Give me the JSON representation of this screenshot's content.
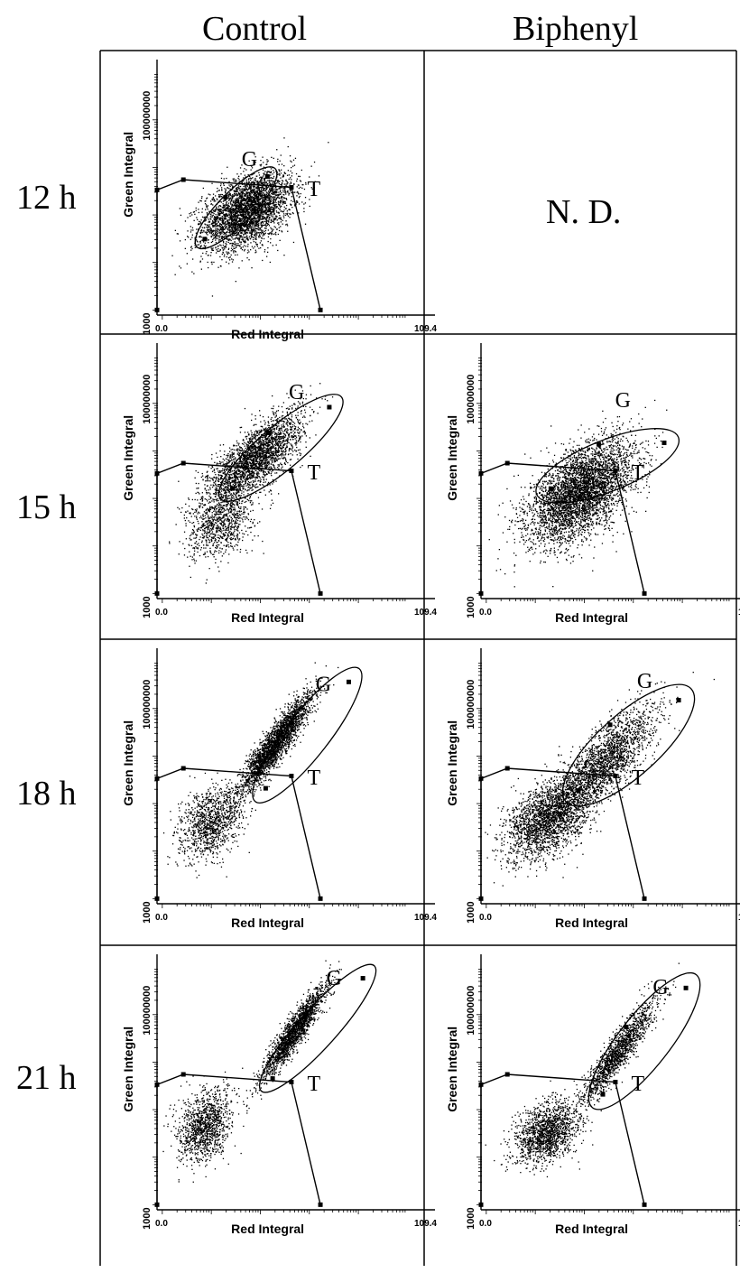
{
  "columns": [
    "Control",
    "Biphenyl"
  ],
  "rows": [
    "12 h",
    "15 h",
    "18 h",
    "21 h"
  ],
  "nd_label": "N. D.",
  "chart_data": [
    {
      "type": "scatter",
      "row": "12 h",
      "column": "Control",
      "xlabel": "Red Integral",
      "ylabel": "Green Integral",
      "x_ticks": [
        "0.0",
        "109.4"
      ],
      "y_ticks": [
        "1000",
        "100000000"
      ],
      "gate_labels": [
        "G",
        "T"
      ],
      "clusters": [
        {
          "cx": 0.34,
          "cy": 0.41,
          "sx": 0.085,
          "sy": 0.075,
          "rho": 0.45,
          "n": 3600
        }
      ],
      "gate_g": {
        "cx": 0.3,
        "cy": 0.42,
        "rx": 0.21,
        "ry": 0.065,
        "angle_deg": -45
      }
    },
    {
      "type": "scatter",
      "row": "15 h",
      "column": "Control",
      "xlabel": "Red Integral",
      "ylabel": "Green Integral",
      "x_ticks": [
        "0.0",
        "109.4"
      ],
      "y_ticks": [
        "1000",
        "100000000"
      ],
      "gate_labels": [
        "G",
        "T"
      ],
      "clusters": [
        {
          "cx": 0.37,
          "cy": 0.55,
          "sx": 0.09,
          "sy": 0.09,
          "rho": 0.75,
          "n": 2600
        },
        {
          "cx": 0.24,
          "cy": 0.3,
          "sx": 0.06,
          "sy": 0.07,
          "rho": 0.35,
          "n": 900
        }
      ],
      "gate_g": {
        "cx": 0.47,
        "cy": 0.59,
        "rx": 0.3,
        "ry": 0.085,
        "angle_deg": -40
      }
    },
    {
      "type": "scatter",
      "row": "15 h",
      "column": "Biphenyl",
      "xlabel": "Red Integral",
      "ylabel": "Green Integral",
      "x_ticks": [
        "0.0",
        "109.4"
      ],
      "y_ticks": [
        "1000",
        "100000000"
      ],
      "gate_labels": [
        "G",
        "T"
      ],
      "clusters": [
        {
          "cx": 0.38,
          "cy": 0.42,
          "sx": 0.1,
          "sy": 0.1,
          "rho": 0.55,
          "n": 4200
        }
      ],
      "gate_g": {
        "cx": 0.48,
        "cy": 0.52,
        "rx": 0.29,
        "ry": 0.1,
        "angle_deg": -22
      }
    },
    {
      "type": "scatter",
      "row": "18 h",
      "column": "Control",
      "xlabel": "Red Integral",
      "ylabel": "Green Integral",
      "x_ticks": [
        "0.0",
        "109.4"
      ],
      "y_ticks": [
        "1000",
        "100000000"
      ],
      "gate_labels": [
        "G",
        "T"
      ],
      "clusters": [
        {
          "cx": 0.45,
          "cy": 0.63,
          "sx": 0.07,
          "sy": 0.1,
          "rho": 0.92,
          "n": 2600
        },
        {
          "cx": 0.2,
          "cy": 0.32,
          "sx": 0.06,
          "sy": 0.07,
          "rho": 0.35,
          "n": 1100
        }
      ],
      "gate_g": {
        "cx": 0.57,
        "cy": 0.66,
        "rx": 0.32,
        "ry": 0.085,
        "angle_deg": -52
      }
    },
    {
      "type": "scatter",
      "row": "18 h",
      "column": "Biphenyl",
      "xlabel": "Red Integral",
      "ylabel": "Green Integral",
      "x_ticks": [
        "0.0",
        "109.4"
      ],
      "y_ticks": [
        "1000",
        "100000000"
      ],
      "gate_labels": [
        "G",
        "T"
      ],
      "clusters": [
        {
          "cx": 0.46,
          "cy": 0.55,
          "sx": 0.1,
          "sy": 0.11,
          "rho": 0.8,
          "n": 2200
        },
        {
          "cx": 0.25,
          "cy": 0.33,
          "sx": 0.08,
          "sy": 0.08,
          "rho": 0.45,
          "n": 2200
        }
      ],
      "gate_g": {
        "cx": 0.56,
        "cy": 0.62,
        "rx": 0.32,
        "ry": 0.12,
        "angle_deg": -42
      }
    },
    {
      "type": "scatter",
      "row": "21 h",
      "column": "Control",
      "xlabel": "Red Integral",
      "ylabel": "Green Integral",
      "x_ticks": [
        "0.0",
        "109.4"
      ],
      "y_ticks": [
        "1000",
        "100000000"
      ],
      "gate_labels": [
        "G",
        "T"
      ],
      "clusters": [
        {
          "cx": 0.52,
          "cy": 0.7,
          "sx": 0.06,
          "sy": 0.09,
          "rho": 0.93,
          "n": 1900
        },
        {
          "cx": 0.18,
          "cy": 0.33,
          "sx": 0.05,
          "sy": 0.07,
          "rho": 0.3,
          "n": 1200
        }
      ],
      "gate_g": {
        "cx": 0.61,
        "cy": 0.71,
        "rx": 0.32,
        "ry": 0.075,
        "angle_deg": -48
      }
    },
    {
      "type": "scatter",
      "row": "21 h",
      "column": "Biphenyl",
      "xlabel": "Red Integral",
      "ylabel": "Green Integral",
      "x_ticks": [
        "0.0",
        "109.4"
      ],
      "y_ticks": [
        "1000",
        "100000000"
      ],
      "gate_labels": [
        "G",
        "T"
      ],
      "clusters": [
        {
          "cx": 0.52,
          "cy": 0.62,
          "sx": 0.07,
          "sy": 0.1,
          "rho": 0.92,
          "n": 1500
        },
        {
          "cx": 0.25,
          "cy": 0.3,
          "sx": 0.06,
          "sy": 0.06,
          "rho": 0.35,
          "n": 1500
        }
      ],
      "gate_g": {
        "cx": 0.62,
        "cy": 0.66,
        "rx": 0.32,
        "ry": 0.1,
        "angle_deg": -52
      }
    }
  ]
}
